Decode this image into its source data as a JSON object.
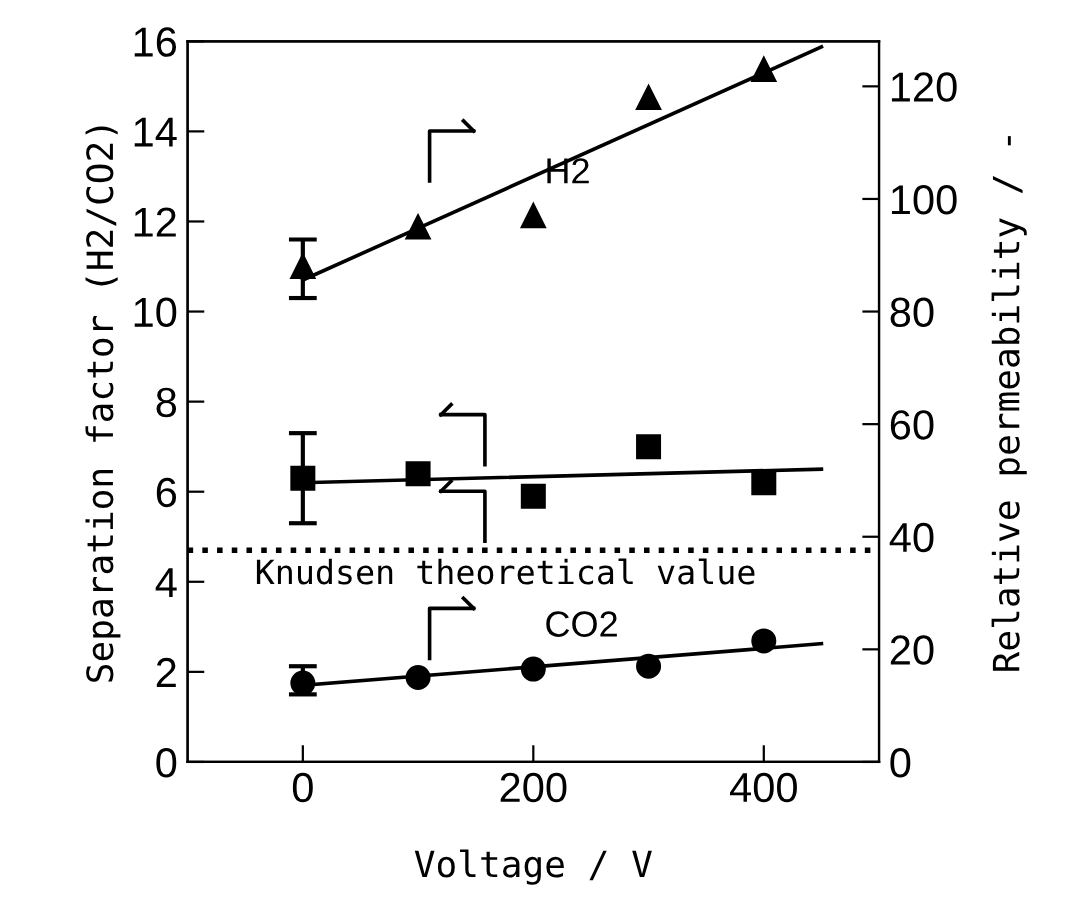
{
  "chart_data": {
    "type": "scatter",
    "xlabel": "Voltage / V",
    "ylabel": "Separation factor (H2/CO2)",
    "y2label": "Relative permeability / -",
    "xlim": [
      -100,
      500
    ],
    "xticks": [
      0,
      200,
      400
    ],
    "ylim": [
      0,
      16
    ],
    "yticks": [
      0,
      2,
      4,
      6,
      8,
      10,
      12,
      14,
      16
    ],
    "y2lim": [
      0,
      128
    ],
    "y2ticks": [
      0,
      20,
      40,
      60,
      80,
      100,
      120
    ],
    "grid": false,
    "legend": "center",
    "series": [
      {
        "name": "H2",
        "axis": "y2",
        "marker": "triangle",
        "color": "#000000",
        "x": [
          0,
          100,
          200,
          300,
          400
        ],
        "values": [
          88,
          95,
          97,
          118,
          123
        ],
        "errors": [
          [
            82.4,
            92.8
          ],
          null,
          null,
          null,
          null
        ]
      },
      {
        "type": "line",
        "axis": "y2",
        "marker": "none",
        "line_style": "solid",
        "color": "#000000",
        "x": [
          0,
          450
        ],
        "values": [
          85.6,
          127
        ]
      },
      {
        "axis": "y",
        "marker": "square",
        "color": "#000000",
        "x": [
          0,
          100,
          200,
          300,
          400
        ],
        "values": [
          6.3,
          6.4,
          5.9,
          7.0,
          6.2
        ],
        "errors": [
          [
            5.3,
            7.3
          ],
          null,
          null,
          null,
          null
        ]
      },
      {
        "type": "line",
        "axis": "y",
        "marker": "none",
        "line_style": "solid",
        "color": "#000000",
        "x": [
          0,
          450
        ],
        "values": [
          6.2,
          6.5
        ]
      },
      {
        "name": "CO2",
        "axis": "y2",
        "marker": "circle",
        "color": "#000000",
        "x": [
          0,
          100,
          200,
          300,
          400
        ],
        "values": [
          14,
          15,
          16.5,
          17,
          21.5
        ],
        "errors": [
          [
            12,
            17
          ],
          null,
          null,
          null,
          null
        ]
      },
      {
        "type": "line",
        "axis": "y2",
        "marker": "none",
        "line_style": "solid",
        "color": "#000000",
        "x": [
          0,
          450
        ],
        "values": [
          13.6,
          21
        ]
      }
    ],
    "ref_lines": [
      {
        "axis": "y",
        "value": 4.7,
        "label": "Knudsen theoretical value",
        "color": "#000000",
        "line_style": "dotted"
      }
    ]
  }
}
